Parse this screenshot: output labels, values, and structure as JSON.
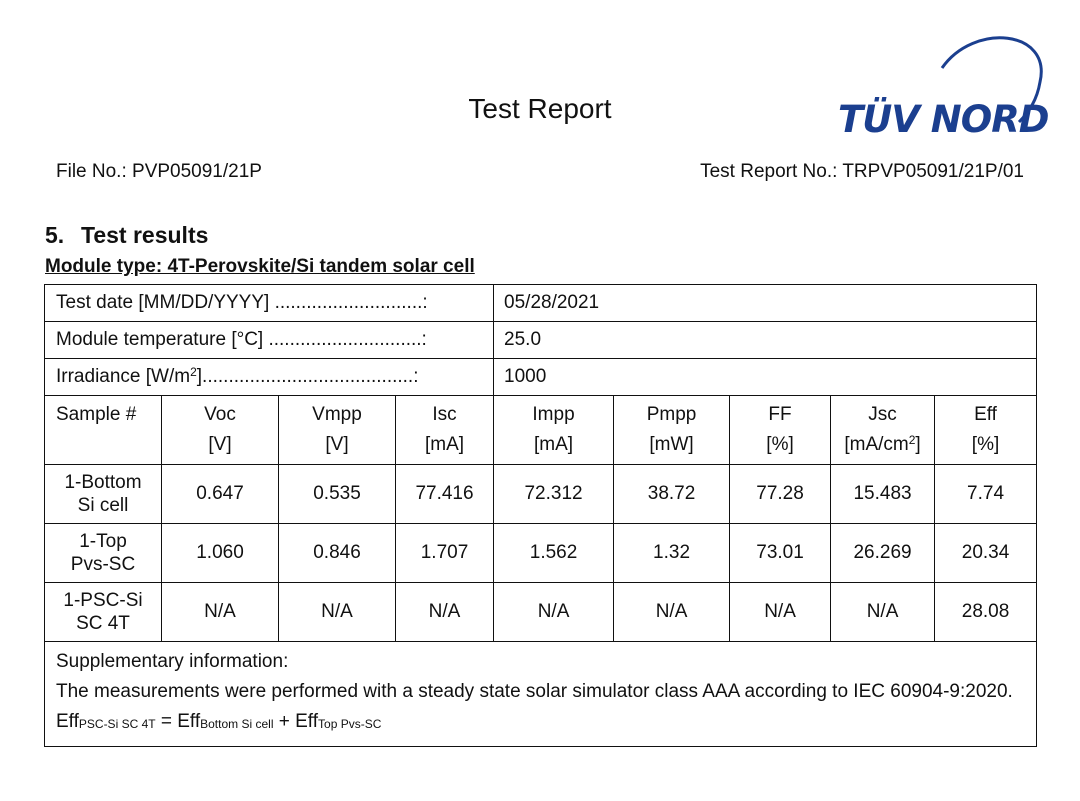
{
  "header": {
    "title": "Test Report",
    "logo_text": "TÜV NORD",
    "file_no": "File No.: PVP05091/21P",
    "report_no": "Test Report No.: TRPVP05091/21P/01"
  },
  "section": {
    "number": "5.",
    "title": "Test results",
    "module_type": "Module type: 4T-Perovskite/Si tandem solar cell"
  },
  "info_rows": [
    {
      "label": "Test date [MM/DD/YYYY] ............................:",
      "value": "05/28/2021"
    },
    {
      "label": "Module temperature [°C] .............................:",
      "value": "25.0"
    },
    {
      "label_main": "Irradiance [W/m",
      "label_sup": "2",
      "label_rest": "]........................................:",
      "value": "1000"
    }
  ],
  "columns": [
    {
      "name": "Sample #",
      "unit": ""
    },
    {
      "name": "Voc",
      "unit": "[V]"
    },
    {
      "name": "Vmpp",
      "unit": "[V]"
    },
    {
      "name": "Isc",
      "unit": "[mA]"
    },
    {
      "name": "Impp",
      "unit": "[mA]"
    },
    {
      "name": "Pmpp",
      "unit": "[mW]"
    },
    {
      "name": "FF",
      "unit": "[%]"
    },
    {
      "name": "Jsc",
      "unit_main": "[mA/cm",
      "unit_sup": "2",
      "unit_rest": "]"
    },
    {
      "name": "Eff",
      "unit": "[%]"
    }
  ],
  "rows": [
    {
      "sample_line1": "1-Bottom",
      "sample_line2": "Si cell",
      "values": [
        "0.647",
        "0.535",
        "77.416",
        "72.312",
        "38.72",
        "77.28",
        "15.483",
        "7.74"
      ]
    },
    {
      "sample_line1": "1-Top",
      "sample_line2": "Pvs-SC",
      "values": [
        "1.060",
        "0.846",
        "1.707",
        "1.562",
        "1.32",
        "73.01",
        "26.269",
        "20.34"
      ]
    },
    {
      "sample_line1": "1-PSC-Si",
      "sample_line2": "SC 4T",
      "values": [
        "N/A",
        "N/A",
        "N/A",
        "N/A",
        "N/A",
        "N/A",
        "N/A",
        "28.08"
      ]
    }
  ],
  "supplementary": {
    "heading": "Supplementary information:",
    "text": "The measurements were performed with a steady state solar simulator class AAA according to IEC 60904-9:2020.",
    "formula": {
      "t1": "Eff",
      "s1": "PSC-Si SC 4T",
      "t2": " = Eff",
      "s2": "Bottom Si cell",
      "t3": " + Eff",
      "s3": "Top Pvs-SC"
    }
  },
  "colors": {
    "logo_blue": "#1b3f8f",
    "text": "#111111",
    "border": "#111111"
  }
}
